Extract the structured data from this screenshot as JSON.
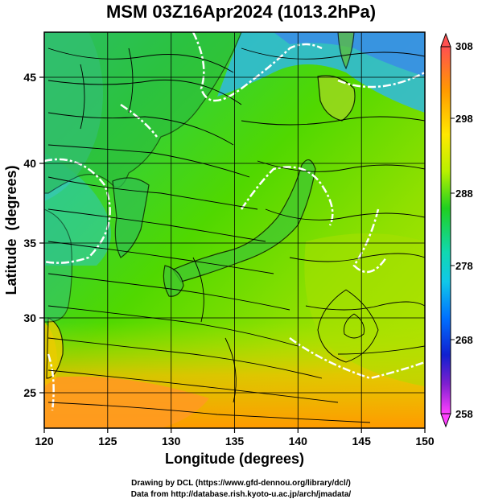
{
  "title": "MSM 03Z16Apr2024 (1013.2hPa)",
  "map": {
    "xlabel": "Longitude (degrees)",
    "ylabel": "Latitude  (degrees)",
    "lon_range": [
      120,
      150
    ],
    "lat_range": [
      22.5,
      47.5
    ],
    "lon_ticks": [
      "120",
      "125",
      "130",
      "135",
      "140",
      "145",
      "150"
    ],
    "lat_ticks": [
      "25",
      "30",
      "35",
      "40",
      "45"
    ],
    "grid": true,
    "field": "temperature (K) with wind streamlines"
  },
  "colorbar": {
    "ticks": [
      "308",
      "298",
      "288",
      "278",
      "268",
      "258"
    ],
    "colors": [
      "#ff5a5a",
      "#ffaa00",
      "#e8e800",
      "#10d010",
      "#10d8c8",
      "#0060ff",
      "#3010c8",
      "#ff40ff"
    ]
  },
  "credits": {
    "line1": "Drawing by DCL (https://www.gfd-dennou.org/library/dcl/)",
    "line2": "Data from http://database.rish.kyoto-u.ac.jp/arch/jmadata/"
  }
}
